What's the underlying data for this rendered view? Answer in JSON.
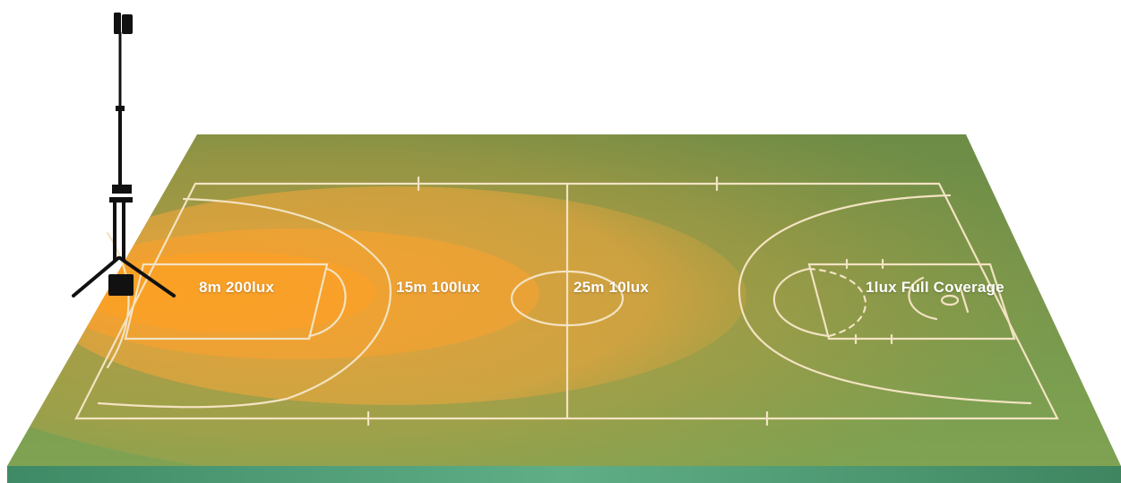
{
  "zones": [
    {
      "label": "8m 200lux",
      "color": "#F8A02A"
    },
    {
      "label": "15m 100lux",
      "color": "#F2A232"
    },
    {
      "label": "25m 10lux",
      "color": "#E8A73C"
    },
    {
      "label": "1lux Full Coverage",
      "color": "#B8A04A"
    }
  ],
  "colors": {
    "court_green": "#6E9A4E",
    "court_edge": "#4E8A5A",
    "line": "#F3E3C2",
    "light_core": "#F8A02A",
    "tripod": "#111111"
  },
  "icons": {
    "light_tower": "tripod-light-tower-icon"
  }
}
